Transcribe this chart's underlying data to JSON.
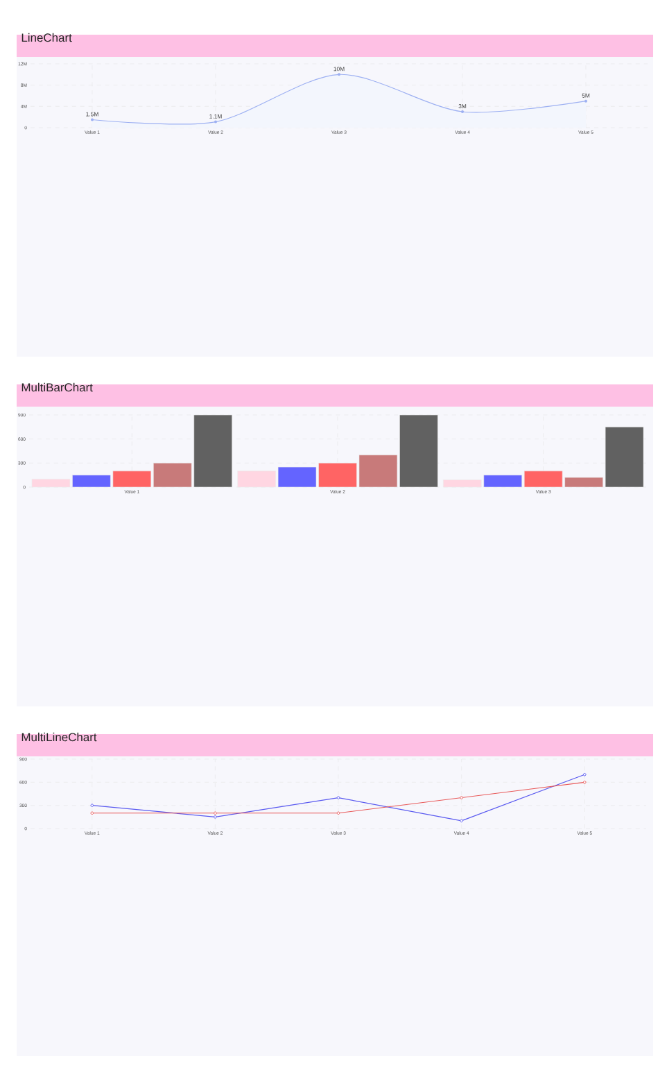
{
  "chart_data": [
    {
      "type": "area",
      "title": "LineChart",
      "categories": [
        "Value 1",
        "Value 2",
        "Value 3",
        "Value 4",
        "Value 5"
      ],
      "values": [
        1500000,
        1100000,
        10000000,
        3000000,
        5000000
      ],
      "value_labels": [
        "1.5M",
        "1.1M",
        "10M",
        "3M",
        "5M"
      ],
      "color": "#9db0f2",
      "ylim": [
        0,
        12000000
      ],
      "yticks": [
        0,
        {
          "value": 4000000,
          "label": "4M"
        },
        {
          "value": 8000000,
          "label": "8M"
        },
        {
          "value": 12000000,
          "label": "12M"
        }
      ],
      "grid": true,
      "marker": "circle"
    },
    {
      "type": "bar",
      "title": "MultiBarChart",
      "categories": [
        "Value 1",
        "Value 2",
        "Value 3"
      ],
      "series": [
        {
          "color": "#ffd6e2",
          "values": [
            100,
            200,
            90
          ]
        },
        {
          "color": "#6464ff",
          "values": [
            150,
            250,
            150
          ]
        },
        {
          "color": "#ff6464",
          "values": [
            200,
            300,
            200
          ]
        },
        {
          "color": "#c87a7a",
          "values": [
            300,
            400,
            120
          ]
        },
        {
          "color": "#616161",
          "values": [
            900,
            900,
            750
          ]
        }
      ],
      "ylim": [
        0,
        900
      ],
      "yticks": [
        0,
        300,
        600,
        900
      ],
      "grid": true
    },
    {
      "type": "line",
      "title": "MultiLineChart",
      "categories": [
        "Value 1",
        "Value 2",
        "Value 3",
        "Value 4",
        "Value 5"
      ],
      "series": [
        {
          "color": "#5a5af0",
          "values": [
            300,
            150,
            400,
            100,
            700
          ]
        },
        {
          "color": "#e85858",
          "values": [
            200,
            200,
            200,
            400,
            600
          ]
        }
      ],
      "ylim": [
        0,
        900
      ],
      "yticks": [
        0,
        300,
        600,
        900
      ],
      "grid": true,
      "marker": "circle"
    }
  ]
}
